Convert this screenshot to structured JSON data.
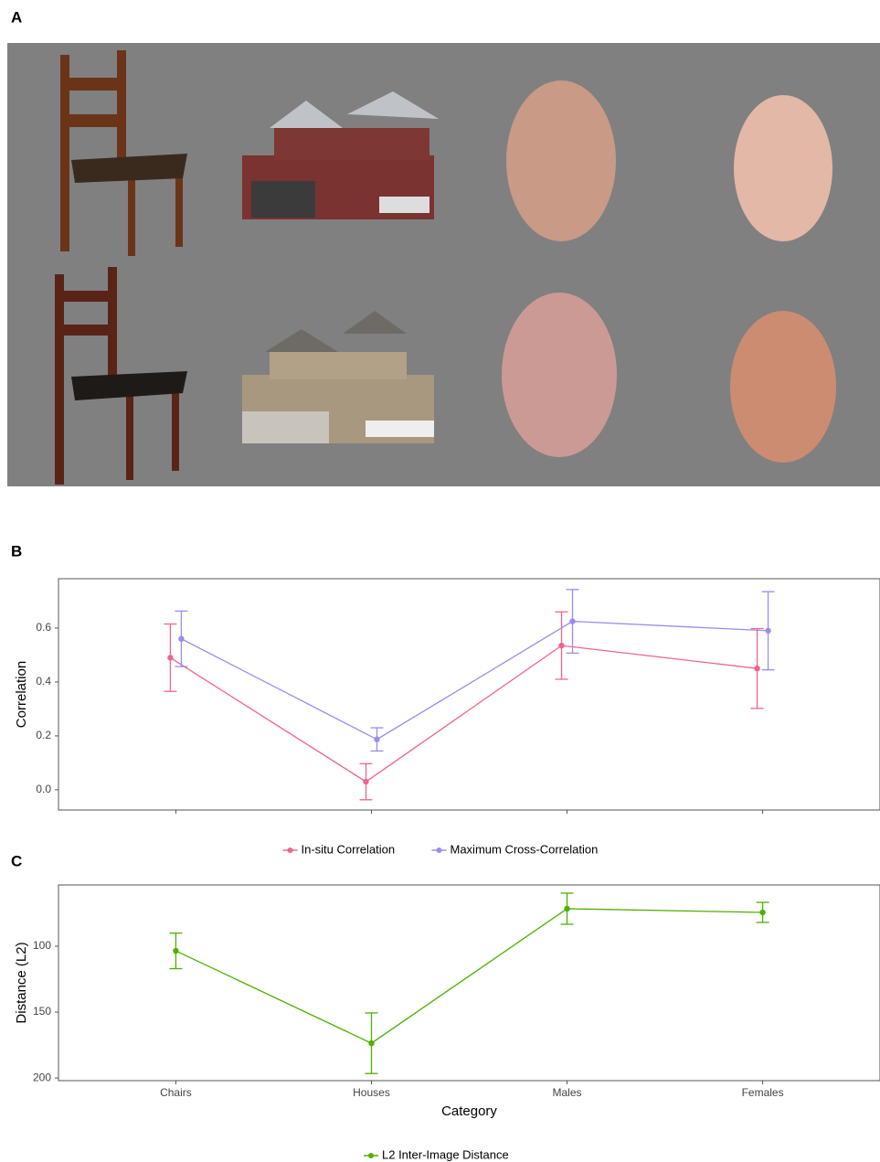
{
  "panel_labels": [
    "A",
    "B",
    "C"
  ],
  "chart_data": [
    {
      "type": "line",
      "ylabel": "Correlation",
      "categories": [
        null,
        null,
        null,
        null
      ],
      "series": [
        {
          "name": "In-situ Correlation",
          "color": "#f0648a",
          "values": [
            0.49,
            0.03,
            0.535,
            0.45
          ],
          "errors": [
            0.125,
            0.067,
            0.125,
            0.148
          ]
        },
        {
          "name": "Maximum Cross-Correlation",
          "color": "#9a8cf0",
          "values": [
            0.56,
            0.187,
            0.625,
            0.59
          ],
          "errors": [
            0.103,
            0.043,
            0.118,
            0.145
          ]
        }
      ],
      "ylim": [
        -0.075,
        0.783
      ],
      "yticks": [
        {
          "value": 0,
          "label": "0.0"
        },
        0.2,
        0.4,
        0.6
      ],
      "legend": "bottom"
    },
    {
      "type": "line",
      "xlabel": "Category",
      "ylabel": "Distance (L2)",
      "categories": [
        "Chairs",
        "Houses",
        "Males",
        "Females"
      ],
      "series": [
        {
          "name": "L2 Inter-Image Distance",
          "color": "#4fb000",
          "values": [
            103.5,
            173.6,
            71.5,
            74.3
          ],
          "errors": [
            13.5,
            23,
            11.8,
            7.6
          ]
        }
      ],
      "ylim": [
        53.5,
        202
      ],
      "y_reversed": true,
      "yticks": [
        100,
        150,
        200
      ],
      "legend": "bottom"
    }
  ]
}
